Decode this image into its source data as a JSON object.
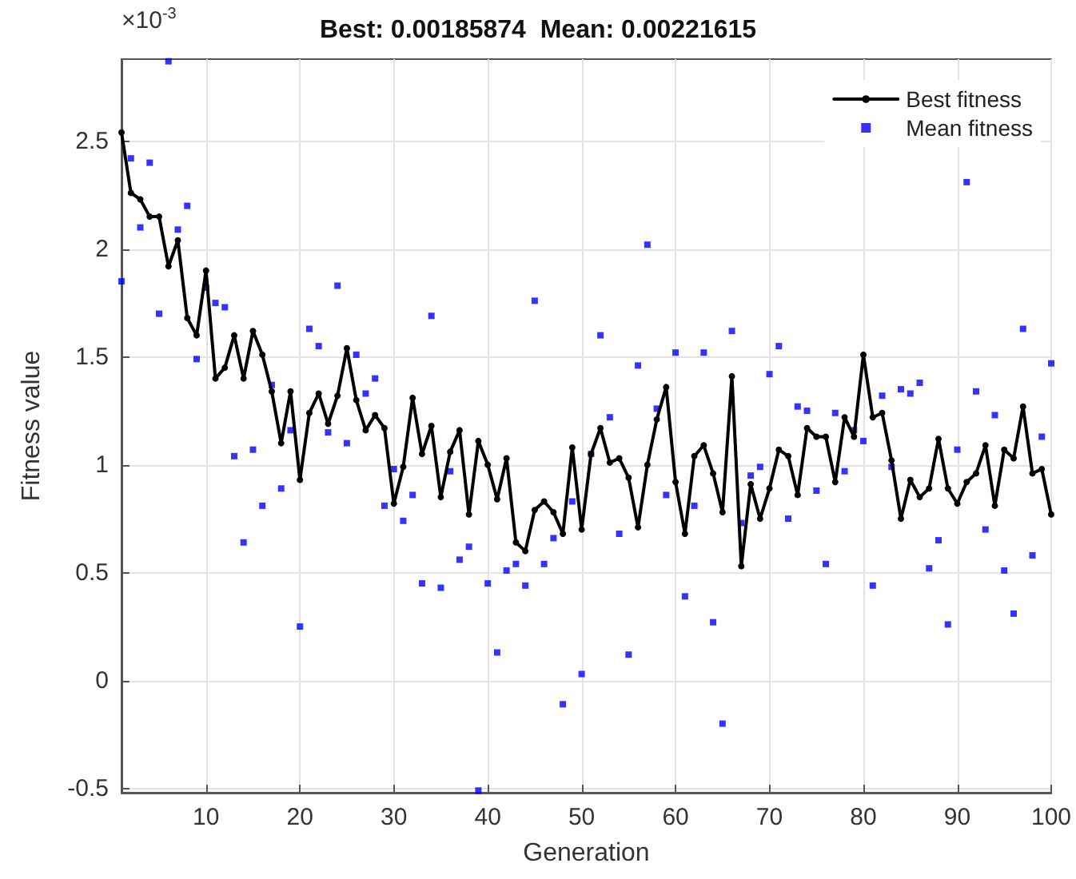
{
  "chart_data": {
    "type": "line",
    "title": "Best: 0.00185874  Mean: 0.00221615",
    "xlabel": "Generation",
    "ylabel": "Fitness value",
    "annotations": [
      "×10$^{-3}$"
    ],
    "x": [
      1,
      2,
      3,
      4,
      5,
      6,
      7,
      8,
      9,
      10,
      11,
      12,
      13,
      14,
      15,
      16,
      17,
      18,
      19,
      20,
      21,
      22,
      23,
      24,
      25,
      26,
      27,
      28,
      29,
      30,
      31,
      32,
      33,
      34,
      35,
      36,
      37,
      38,
      39,
      40,
      41,
      42,
      43,
      44,
      45,
      46,
      47,
      48,
      49,
      50,
      51,
      52,
      53,
      54,
      55,
      56,
      57,
      58,
      59,
      60,
      61,
      62,
      63,
      64,
      65,
      66,
      67,
      68,
      69,
      70,
      71,
      72,
      73,
      74,
      75,
      76,
      77,
      78,
      79,
      80,
      81,
      82,
      83,
      84,
      85,
      86,
      87,
      88,
      89,
      90,
      91,
      92,
      93,
      94,
      95,
      96,
      97,
      98,
      99,
      100
    ],
    "series": [
      {
        "name": "Best fitness",
        "color": "#000000",
        "marker": "circle",
        "line_style": "solid",
        "values": [
          2.54,
          2.26,
          2.23,
          2.15,
          2.15,
          1.92,
          2.04,
          1.68,
          1.6,
          1.9,
          1.4,
          1.45,
          1.6,
          1.4,
          1.62,
          1.51,
          1.34,
          1.1,
          1.34,
          0.93,
          1.24,
          1.33,
          1.19,
          1.32,
          1.54,
          1.3,
          1.16,
          1.23,
          1.17,
          0.82,
          0.99,
          1.31,
          1.05,
          1.18,
          0.85,
          1.06,
          1.16,
          0.77,
          1.11,
          1.0,
          0.84,
          1.03,
          0.64,
          0.6,
          0.79,
          0.83,
          0.78,
          0.68,
          1.08,
          0.7,
          1.05,
          1.17,
          1.01,
          1.03,
          0.94,
          0.71,
          1.0,
          1.21,
          1.36,
          0.92,
          0.68,
          1.04,
          1.09,
          0.96,
          0.78,
          1.41,
          0.53,
          0.91,
          0.75,
          0.89,
          1.07,
          1.04,
          0.86,
          1.17,
          1.13,
          1.13,
          0.92,
          1.22,
          1.13,
          1.51,
          1.22,
          1.24,
          1.02,
          0.75,
          0.93,
          0.85,
          0.89,
          1.12,
          0.89,
          0.82,
          0.92,
          0.96,
          1.09,
          0.81,
          1.07,
          1.03,
          1.27,
          0.96,
          0.98,
          0.77
        ]
      },
      {
        "name": "Mean fitness",
        "type": "scatter",
        "color": "#0000ff",
        "marker": "square",
        "values": [
          1.85,
          2.42,
          2.1,
          2.4,
          1.7,
          2.87,
          2.09,
          2.2,
          1.49,
          1.82,
          1.75,
          1.73,
          1.04,
          0.64,
          1.07,
          0.81,
          1.37,
          0.89,
          1.16,
          0.25,
          1.63,
          1.55,
          1.15,
          1.83,
          1.1,
          1.51,
          1.33,
          1.4,
          0.81,
          0.98,
          0.74,
          0.86,
          0.45,
          1.69,
          0.43,
          0.97,
          0.56,
          0.62,
          -0.51,
          0.45,
          0.13,
          0.51,
          0.54,
          0.44,
          1.76,
          0.54,
          0.66,
          -0.11,
          0.83,
          0.03,
          1.05,
          1.6,
          1.22,
          0.68,
          0.12,
          1.46,
          2.02,
          1.26,
          0.86,
          1.52,
          0.39,
          0.81,
          1.52,
          0.27,
          -0.2,
          1.62,
          0.73,
          0.95,
          0.99,
          1.42,
          1.55,
          0.75,
          1.27,
          1.25,
          0.88,
          0.54,
          1.24,
          0.97,
          1.16,
          1.11,
          0.44,
          1.32,
          0.99,
          1.35,
          1.33,
          1.38,
          0.52,
          0.65,
          0.26,
          1.07,
          2.31,
          1.34,
          0.7,
          1.23,
          0.51,
          0.31,
          1.63,
          0.58,
          1.13,
          1.47
        ]
      }
    ],
    "xlim": [
      1,
      100
    ],
    "xticks": [
      10,
      20,
      30,
      40,
      50,
      60,
      70,
      80,
      90,
      100
    ],
    "ylim": [
      -0.52,
      2.88
    ],
    "yticks": [
      -0.5,
      0,
      0.5,
      1,
      1.5,
      2,
      2.5
    ],
    "grid": true,
    "legend": "top right"
  }
}
